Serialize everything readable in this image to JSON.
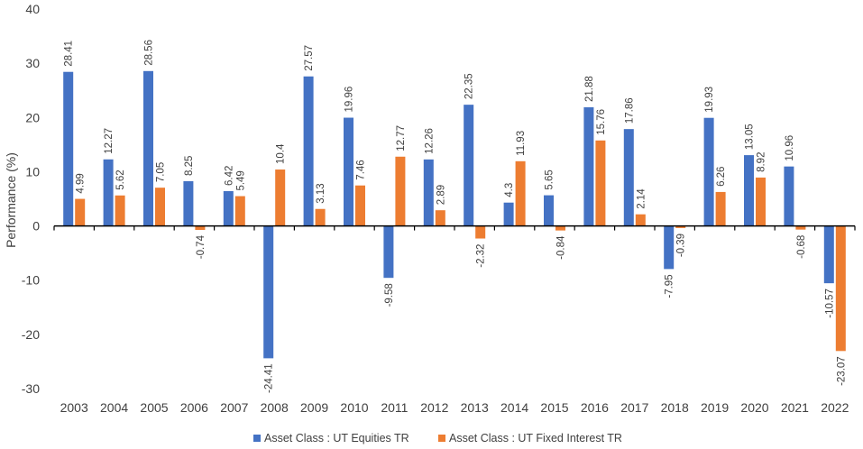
{
  "chart_data": {
    "type": "bar",
    "title": "",
    "xlabel": "",
    "ylabel": "Performance (%)",
    "ylim": [
      -30,
      40
    ],
    "yticks": [
      40,
      30,
      20,
      10,
      0,
      -10,
      -20,
      -30
    ],
    "grid": false,
    "legend_position": "bottom",
    "categories": [
      "2003",
      "2004",
      "2005",
      "2006",
      "2007",
      "2008",
      "2009",
      "2010",
      "2011",
      "2012",
      "2013",
      "2014",
      "2015",
      "2016",
      "2017",
      "2018",
      "2019",
      "2020",
      "2021",
      "2022"
    ],
    "series": [
      {
        "name": "Asset Class : UT Equities TR",
        "color": "#4472C4",
        "values": [
          28.41,
          12.27,
          28.56,
          8.25,
          6.42,
          -24.41,
          27.57,
          19.96,
          -9.58,
          12.26,
          22.35,
          4.3,
          5.65,
          21.88,
          17.86,
          -7.95,
          19.93,
          13.05,
          10.96,
          -10.57
        ],
        "labels": [
          "28.41",
          "12.27",
          "28.56",
          "8.25",
          "6.42",
          "-24.41",
          "27.57",
          "19.96",
          "-9.58",
          "12.26",
          "22.35",
          "4.3",
          "5.65",
          "21.88",
          "17.86",
          "-7.95",
          "19.93",
          "13.05",
          "10.96",
          "-10.57"
        ]
      },
      {
        "name": "Asset Class : UT Fixed Interest TR",
        "color": "#ED7D31",
        "values": [
          4.99,
          5.62,
          7.05,
          -0.74,
          5.49,
          10.4,
          3.13,
          7.46,
          12.77,
          2.89,
          -2.32,
          11.93,
          -0.84,
          15.76,
          2.14,
          -0.39,
          6.26,
          8.92,
          -0.68,
          -23.07
        ],
        "labels": [
          "4.99",
          "5.62",
          "7.05",
          "-0.74",
          "5.49",
          "10.4",
          "3.13",
          "7.46",
          "12.77",
          "2.89",
          "-2.32",
          "11.93",
          "-0.84",
          "15.76",
          "2.14",
          "-0.39",
          "6.26",
          "8.92",
          "-0.68",
          "-23.07"
        ]
      }
    ]
  }
}
